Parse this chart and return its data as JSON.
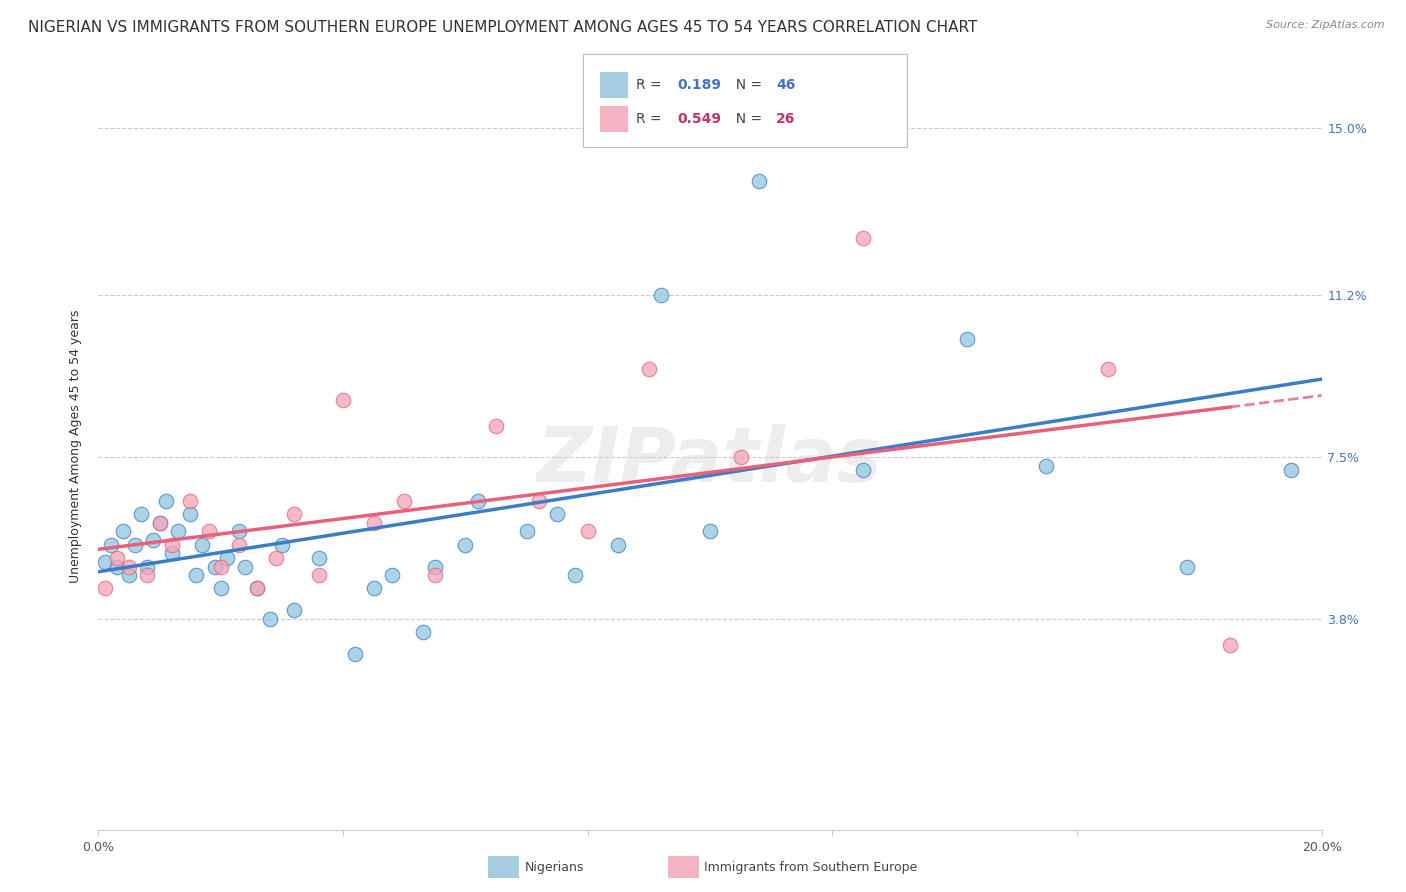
{
  "title": "NIGERIAN VS IMMIGRANTS FROM SOUTHERN EUROPE UNEMPLOYMENT AMONG AGES 45 TO 54 YEARS CORRELATION CHART",
  "source": "Source: ZipAtlas.com",
  "ylabel": "Unemployment Among Ages 45 to 54 years",
  "ytick_labels": [
    "3.8%",
    "7.5%",
    "11.2%",
    "15.0%"
  ],
  "ytick_values": [
    3.8,
    7.5,
    11.2,
    15.0
  ],
  "xlim": [
    0.0,
    20.0
  ],
  "ylim": [
    -1.0,
    16.5
  ],
  "legend_r1_val": "0.189",
  "legend_n1_val": "46",
  "legend_r2_val": "0.549",
  "legend_n2_val": "26",
  "nigerians_color": "#92c5de",
  "immigrants_color": "#f4a5b8",
  "nigerians_line_color": "#3a7dc9",
  "immigrants_line_color": "#e8607a",
  "background_color": "#ffffff",
  "grid_color": "#cccccc",
  "nigerians_x": [
    0.1,
    0.2,
    0.3,
    0.4,
    0.5,
    0.6,
    0.7,
    0.8,
    0.9,
    1.0,
    1.1,
    1.2,
    1.3,
    1.5,
    1.6,
    1.7,
    1.9,
    2.0,
    2.1,
    2.3,
    2.4,
    2.6,
    2.8,
    3.0,
    3.2,
    3.6,
    4.2,
    4.5,
    4.8,
    5.3,
    5.5,
    6.0,
    6.2,
    7.0,
    7.5,
    7.8,
    8.5,
    9.2,
    10.0,
    10.8,
    11.5,
    12.5,
    14.2,
    15.5,
    17.8,
    19.5
  ],
  "nigerians_y": [
    5.1,
    5.5,
    5.0,
    5.8,
    4.8,
    5.5,
    6.2,
    5.0,
    5.6,
    6.0,
    6.5,
    5.3,
    5.8,
    6.2,
    4.8,
    5.5,
    5.0,
    4.5,
    5.2,
    5.8,
    5.0,
    4.5,
    3.8,
    5.5,
    4.0,
    5.2,
    3.0,
    4.5,
    4.8,
    3.5,
    5.0,
    5.5,
    6.5,
    5.8,
    6.2,
    4.8,
    5.5,
    11.2,
    5.8,
    13.8,
    14.8,
    7.2,
    10.2,
    7.3,
    5.0,
    7.2
  ],
  "immigrants_x": [
    0.1,
    0.3,
    0.5,
    0.8,
    1.0,
    1.2,
    1.5,
    1.8,
    2.0,
    2.3,
    2.6,
    2.9,
    3.2,
    3.6,
    4.0,
    4.5,
    5.0,
    5.5,
    6.5,
    7.2,
    8.0,
    9.0,
    10.5,
    12.5,
    16.5,
    18.5
  ],
  "immigrants_y": [
    4.5,
    5.2,
    5.0,
    4.8,
    6.0,
    5.5,
    6.5,
    5.8,
    5.0,
    5.5,
    4.5,
    5.2,
    6.2,
    4.8,
    8.8,
    6.0,
    6.5,
    4.8,
    8.2,
    6.5,
    5.8,
    9.5,
    7.5,
    12.5,
    9.5,
    3.2
  ],
  "watermark_text": "ZIPatlas",
  "title_fontsize": 11,
  "axis_label_fontsize": 9,
  "tick_fontsize": 9
}
